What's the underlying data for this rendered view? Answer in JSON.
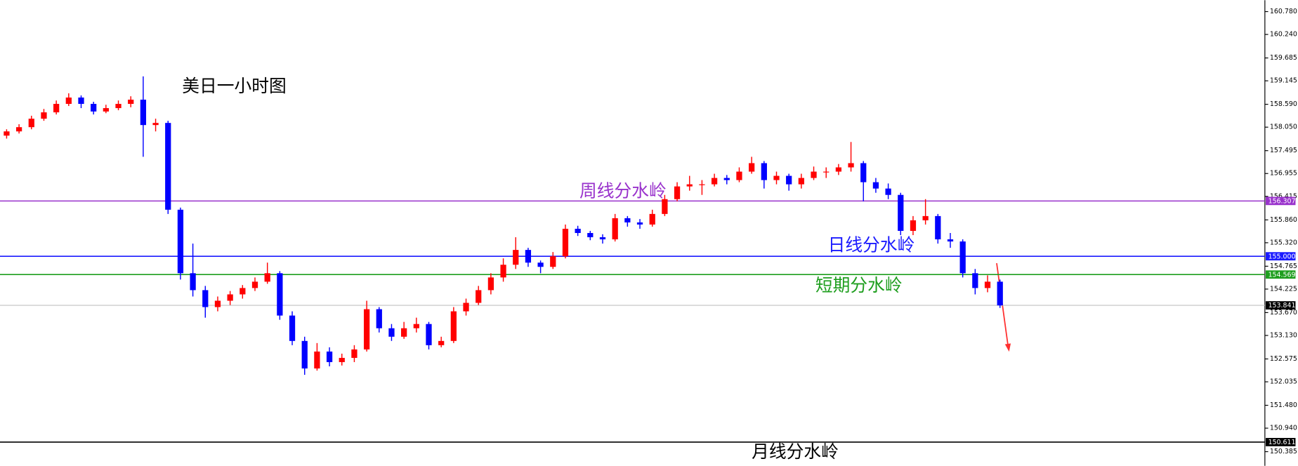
{
  "chart_data": {
    "type": "candlestick",
    "title": "美日一小时图",
    "ylim": [
      150.05,
      161.05
    ],
    "yticks": [
      {
        "value": 160.78,
        "label": "160.780"
      },
      {
        "value": 160.24,
        "label": "160.240"
      },
      159.685,
      159.145,
      {
        "value": 158.59,
        "label": "158.590"
      },
      {
        "value": 158.05,
        "label": "158.050"
      },
      157.495,
      156.955,
      156.415,
      {
        "value": 155.86,
        "label": "155.860"
      },
      {
        "value": 155.32,
        "label": "155.320"
      },
      154.765,
      154.225,
      {
        "value": 153.67,
        "label": "153.670"
      },
      {
        "value": 153.13,
        "label": "153.130"
      },
      152.575,
      152.035,
      {
        "value": 151.48,
        "label": "151.480"
      },
      {
        "value": 150.94,
        "label": "150.940"
      },
      150.385
    ],
    "up_color": "#ff0000",
    "down_color": "#0000ff",
    "ohlc": [
      [
        157.85,
        158.0,
        157.78,
        157.95
      ],
      [
        157.95,
        158.12,
        157.9,
        158.05
      ],
      [
        158.05,
        158.32,
        158.0,
        158.25
      ],
      [
        158.25,
        158.48,
        158.2,
        158.4
      ],
      [
        158.4,
        158.68,
        158.35,
        158.6
      ],
      [
        158.6,
        158.85,
        158.55,
        158.75
      ],
      [
        158.75,
        158.8,
        158.5,
        158.6
      ],
      [
        158.6,
        158.65,
        158.35,
        158.42
      ],
      [
        158.42,
        158.58,
        158.38,
        158.5
      ],
      [
        158.5,
        158.68,
        158.45,
        158.6
      ],
      [
        158.6,
        158.78,
        158.52,
        158.7
      ],
      [
        158.7,
        159.25,
        157.35,
        158.1
      ],
      [
        158.1,
        158.25,
        157.95,
        158.15
      ],
      [
        158.15,
        158.2,
        156.0,
        156.1
      ],
      [
        156.1,
        156.15,
        154.45,
        154.6
      ],
      [
        154.6,
        155.3,
        154.05,
        154.2
      ],
      [
        154.2,
        154.3,
        153.55,
        153.8
      ],
      [
        153.8,
        154.05,
        153.7,
        153.95
      ],
      [
        153.95,
        154.18,
        153.85,
        154.1
      ],
      [
        154.1,
        154.32,
        154.0,
        154.25
      ],
      [
        154.25,
        154.5,
        154.18,
        154.4
      ],
      [
        154.4,
        154.85,
        154.35,
        154.6
      ],
      [
        154.6,
        154.65,
        153.5,
        153.6
      ],
      [
        153.6,
        153.7,
        152.9,
        153.0
      ],
      [
        153.0,
        153.1,
        152.2,
        152.35
      ],
      [
        152.35,
        152.95,
        152.3,
        152.75
      ],
      [
        152.75,
        152.85,
        152.4,
        152.5
      ],
      [
        152.5,
        152.7,
        152.42,
        152.6
      ],
      [
        152.6,
        152.9,
        152.5,
        152.8
      ],
      [
        152.8,
        153.95,
        152.75,
        153.75
      ],
      [
        153.75,
        153.8,
        153.2,
        153.3
      ],
      [
        153.3,
        153.4,
        153.0,
        153.1
      ],
      [
        153.1,
        153.45,
        153.05,
        153.3
      ],
      [
        153.3,
        153.55,
        153.2,
        153.4
      ],
      [
        153.4,
        153.45,
        152.8,
        152.9
      ],
      [
        152.9,
        153.1,
        152.85,
        153.0
      ],
      [
        153.0,
        153.8,
        152.95,
        153.7
      ],
      [
        153.7,
        154.0,
        153.6,
        153.9
      ],
      [
        153.9,
        154.3,
        153.85,
        154.2
      ],
      [
        154.2,
        154.6,
        154.1,
        154.5
      ],
      [
        154.5,
        154.95,
        154.4,
        154.8
      ],
      [
        154.8,
        155.45,
        154.7,
        155.15
      ],
      [
        155.15,
        155.2,
        154.75,
        154.85
      ],
      [
        154.85,
        154.9,
        154.6,
        154.75
      ],
      [
        154.75,
        155.1,
        154.7,
        155.0
      ],
      [
        155.0,
        155.75,
        154.95,
        155.65
      ],
      [
        155.65,
        155.72,
        155.48,
        155.55
      ],
      [
        155.55,
        155.6,
        155.38,
        155.45
      ],
      [
        155.45,
        155.52,
        155.3,
        155.4
      ],
      [
        155.4,
        156.0,
        155.35,
        155.9
      ],
      [
        155.9,
        155.95,
        155.7,
        155.8
      ],
      [
        155.8,
        155.88,
        155.65,
        155.75
      ],
      [
        155.75,
        156.1,
        155.7,
        156.0
      ],
      [
        156.0,
        156.45,
        155.95,
        156.35
      ],
      [
        156.35,
        156.75,
        156.3,
        156.65
      ],
      [
        156.65,
        156.9,
        156.55,
        156.7
      ],
      [
        156.7,
        156.8,
        156.45,
        156.7
      ],
      [
        156.7,
        156.95,
        156.65,
        156.85
      ],
      [
        156.85,
        156.92,
        156.7,
        156.8
      ],
      [
        156.8,
        157.1,
        156.75,
        157.0
      ],
      [
        157.0,
        157.35,
        156.95,
        157.2
      ],
      [
        157.2,
        157.25,
        156.6,
        156.8
      ],
      [
        156.8,
        157.0,
        156.7,
        156.9
      ],
      [
        156.9,
        156.95,
        156.55,
        156.7
      ],
      [
        156.7,
        156.95,
        156.6,
        156.85
      ],
      [
        156.85,
        157.12,
        156.8,
        157.0
      ],
      [
        157.0,
        157.1,
        156.85,
        157.0
      ],
      [
        157.0,
        157.18,
        156.92,
        157.1
      ],
      [
        157.1,
        157.7,
        157.0,
        157.2
      ],
      [
        157.2,
        157.25,
        156.3,
        156.75
      ],
      [
        156.75,
        156.85,
        156.5,
        156.6
      ],
      [
        156.6,
        156.72,
        156.35,
        156.45
      ],
      [
        156.45,
        156.5,
        155.5,
        155.6
      ],
      [
        155.6,
        155.95,
        155.5,
        155.85
      ],
      [
        155.85,
        156.35,
        155.75,
        155.95
      ],
      [
        155.95,
        156.0,
        155.3,
        155.4
      ],
      [
        155.4,
        155.55,
        155.2,
        155.35
      ],
      [
        155.35,
        155.4,
        154.5,
        154.6
      ],
      [
        154.6,
        154.7,
        154.1,
        154.25
      ],
      [
        154.25,
        154.55,
        154.15,
        154.4
      ],
      [
        154.4,
        154.45,
        153.78,
        153.84
      ]
    ],
    "levels": [
      {
        "label": "周线分水岭",
        "value": 156.307,
        "value_label": "156.307",
        "color": "#9932cc"
      },
      {
        "label": "日线分水岭",
        "value": 155.0,
        "value_label": "155.000",
        "color": "#1a1aff"
      },
      {
        "label": "短期分水岭",
        "value": 154.569,
        "value_label": "154.569",
        "color": "#1e9e1e"
      },
      {
        "value": 153.841,
        "value_label": "153.841",
        "color": "#c0c0c0"
      },
      {
        "label": "月线分水岭",
        "value": 150.611,
        "value_label": "150.611",
        "color": "#000000"
      }
    ]
  }
}
